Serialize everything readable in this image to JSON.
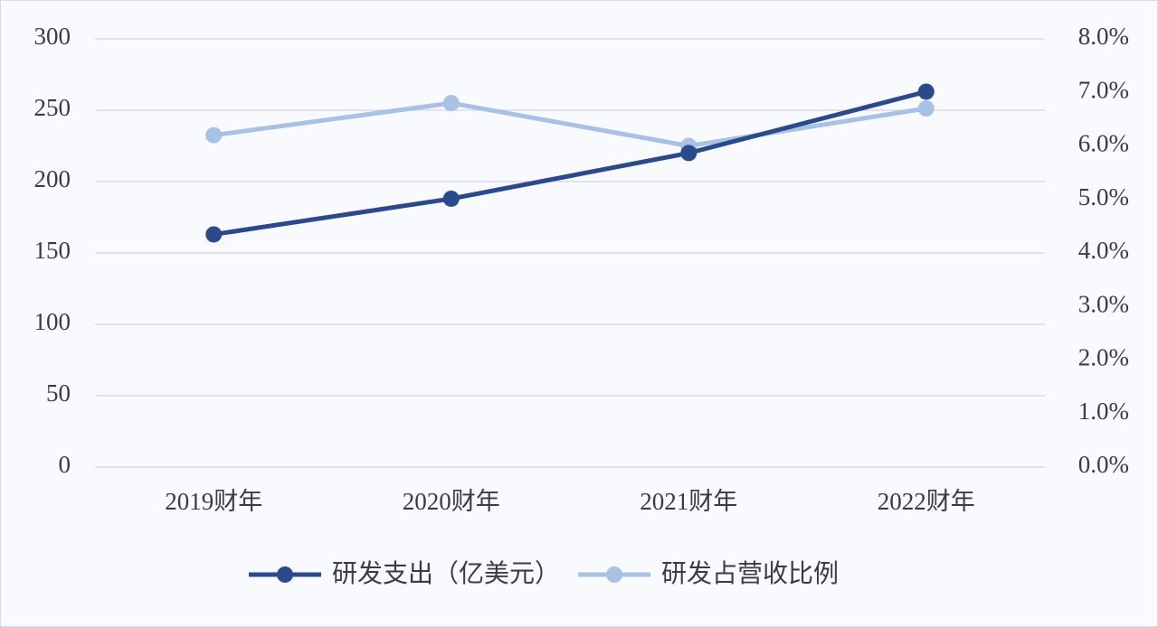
{
  "chart_data": {
    "type": "line",
    "categories": [
      "2019财年",
      "2020财年",
      "2021财年",
      "2022财年"
    ],
    "series": [
      {
        "name": "研发支出（亿美元）",
        "color": "#2b4a8b",
        "values": [
          163,
          188,
          220,
          263
        ]
      },
      {
        "name": "研发占营收比例",
        "color": "#a8c2e6",
        "values": [
          6.2,
          6.8,
          6.0,
          6.7
        ],
        "axis": "y2"
      }
    ],
    "ylim": [
      0,
      300
    ],
    "yticks": [
      0,
      50,
      100,
      150,
      200,
      250,
      300
    ],
    "y2lim": [
      0,
      8
    ],
    "y2ticks": [
      {
        "value": 0,
        "label": "0.0%"
      },
      {
        "value": 1,
        "label": "1.0%"
      },
      {
        "value": 2,
        "label": "2.0%"
      },
      {
        "value": 3,
        "label": "3.0%"
      },
      {
        "value": 4,
        "label": "4.0%"
      },
      {
        "value": 5,
        "label": "5.0%"
      },
      {
        "value": 6,
        "label": "6.0%"
      },
      {
        "value": 7,
        "label": "7.0%"
      },
      {
        "value": 8,
        "label": "8.0%"
      }
    ],
    "grid": true,
    "legend": "bottom"
  }
}
